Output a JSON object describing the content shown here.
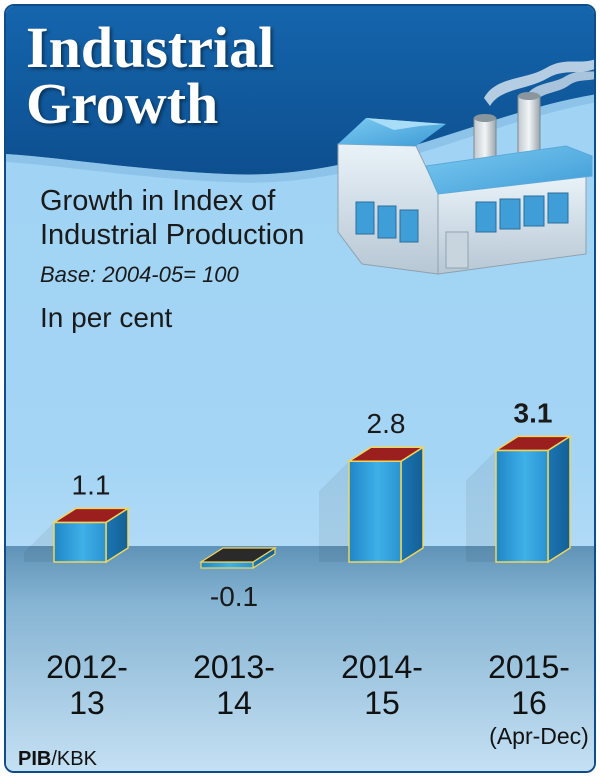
{
  "header": {
    "title": "Industrial\nGrowth"
  },
  "subtitle": "Growth in Index of\nIndustrial Production",
  "base_note": "Base: 2004-05= 100",
  "unit_note": "In per cent",
  "credit": {
    "agency": "PIB",
    "separator": "/",
    "artist": "KBK"
  },
  "colors": {
    "header_blue": "#0f5a9e",
    "bar_blue": "#3aa6e0",
    "bar_top_red": "#9b1f1f",
    "negative_top": "#2a2a2a",
    "edge_yellow": "#f1d55a",
    "floor": "#6c9fc0"
  },
  "icons": [
    "factory-icon"
  ],
  "chart_data": {
    "type": "bar",
    "title": "Industrial Growth",
    "subtitle": "Growth in Index of Industrial Production",
    "xlabel": "",
    "ylabel": "In per cent",
    "categories": [
      "2012-13",
      "2013-14",
      "2014-15",
      "2015-16"
    ],
    "category_lines": [
      [
        "2012-",
        "13"
      ],
      [
        "2013-",
        "14"
      ],
      [
        "2014-",
        "15"
      ],
      [
        "2015-",
        "16"
      ]
    ],
    "category_notes": [
      "",
      "",
      "",
      "(Apr-Dec)"
    ],
    "values": [
      1.1,
      -0.1,
      2.8,
      3.1
    ],
    "value_labels": [
      "1.1",
      "-0.1",
      "2.8",
      "3.1"
    ],
    "highlight_index": 3,
    "ylim": [
      -0.5,
      3.5
    ],
    "grid": false,
    "legend": "none"
  }
}
